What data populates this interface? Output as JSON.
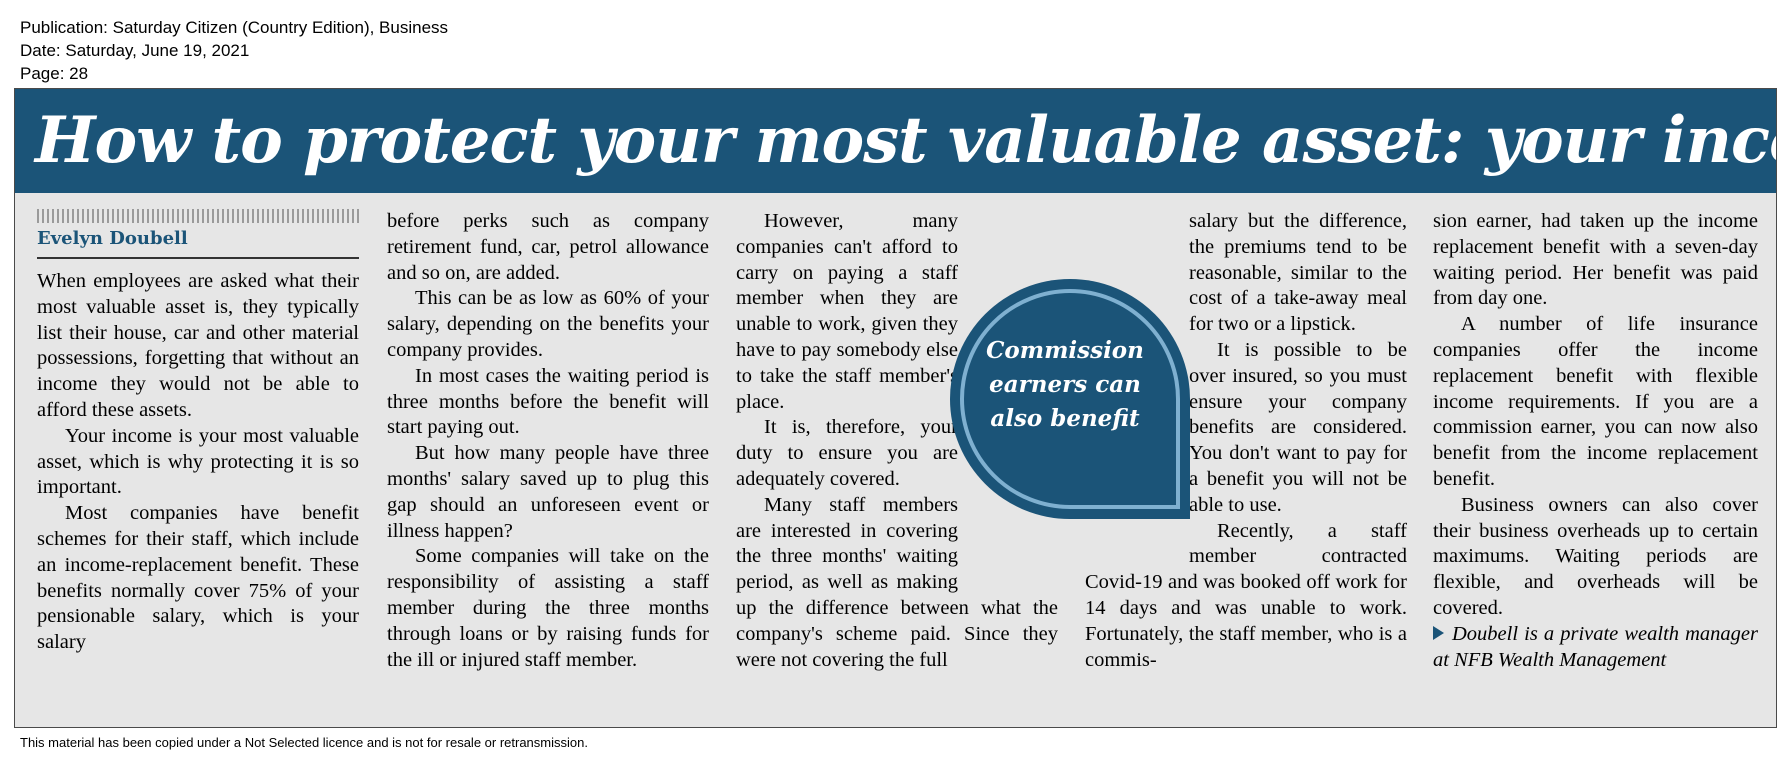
{
  "meta": {
    "publication": "Publication: Saturday Citizen (Country Edition), Business",
    "date": "Date: Saturday, June 19, 2021",
    "page": "Page: 28"
  },
  "article": {
    "headline": "How to protect your most valuable asset: your income",
    "byline": "Evelyn Doubell",
    "pull_quote": [
      "Commission",
      "earners can",
      "also benefit"
    ],
    "col1": [
      "When employees are asked what their most valuable asset is, they typically list their house, car and other material possessions, forgetting that without an income they would not be able to afford these assets.",
      "Your income is your most valuable asset, which is why protecting it is so important.",
      "Most companies have benefit schemes for their staff, which include an income-replacement benefit. These benefits normally cover 75% of your pensionable salary, which is your salary"
    ],
    "col2": [
      "before perks such as company retirement fund, car, petrol allowance and so on, are added.",
      "This can be as low as 60% of your salary, depending on the benefits your company provides.",
      "In most cases the waiting period is three months before the benefit will start paying out.",
      "But how many people have three months' salary saved up to plug this gap should an unforeseen event or illness happen?",
      "Some companies will take on the responsibility of assisting a staff member during the three months through loans or by raising funds for the ill or injured staff member."
    ],
    "col3": [
      "However, many companies can't afford to carry on paying a staff member when they are unable to work, given they have to pay somebody else to take the staff member's place.",
      "It is, therefore, your duty to ensure you are adequately covered.",
      "Many staff members are interested in covering the three months' waiting period, as well as making up the difference between what the company's scheme paid. Since they were not covering the full"
    ],
    "col4": [
      "salary but the difference, the premiums tend to be reasonable, similar to the cost of a take-away meal for two or a lipstick.",
      "It is possible to be over insured, so you must ensure your company benefits are considered. You don't want to pay for a benefit you will not be able to use.",
      "Recently, a staff member contracted Covid-19 and was booked off work for 14 days and was unable to work. Fortunately, the staff member, who is a commis-"
    ],
    "col5": [
      "sion earner, had taken up the income replacement benefit with a seven-day waiting period. Her benefit was paid from day one.",
      "A number of life insurance companies offer the income replacement benefit with flexible income requirements. If you are a commission earner, you can now also benefit from the income replacement benefit.",
      "Business owners can also cover their business overheads up to certain maximums. Waiting periods are flexible, and overheads will be covered."
    ],
    "signoff": "Doubell is a private wealth manager at NFB Wealth Management"
  },
  "footer": "This material has been copied under a Not Selected licence and is not for resale or retransmission.",
  "colors": {
    "banner": "#1b5478",
    "panel": "#e6e6e6",
    "accent": "#1b5478"
  },
  "icons": [
    "triangle-bullet-icon"
  ]
}
